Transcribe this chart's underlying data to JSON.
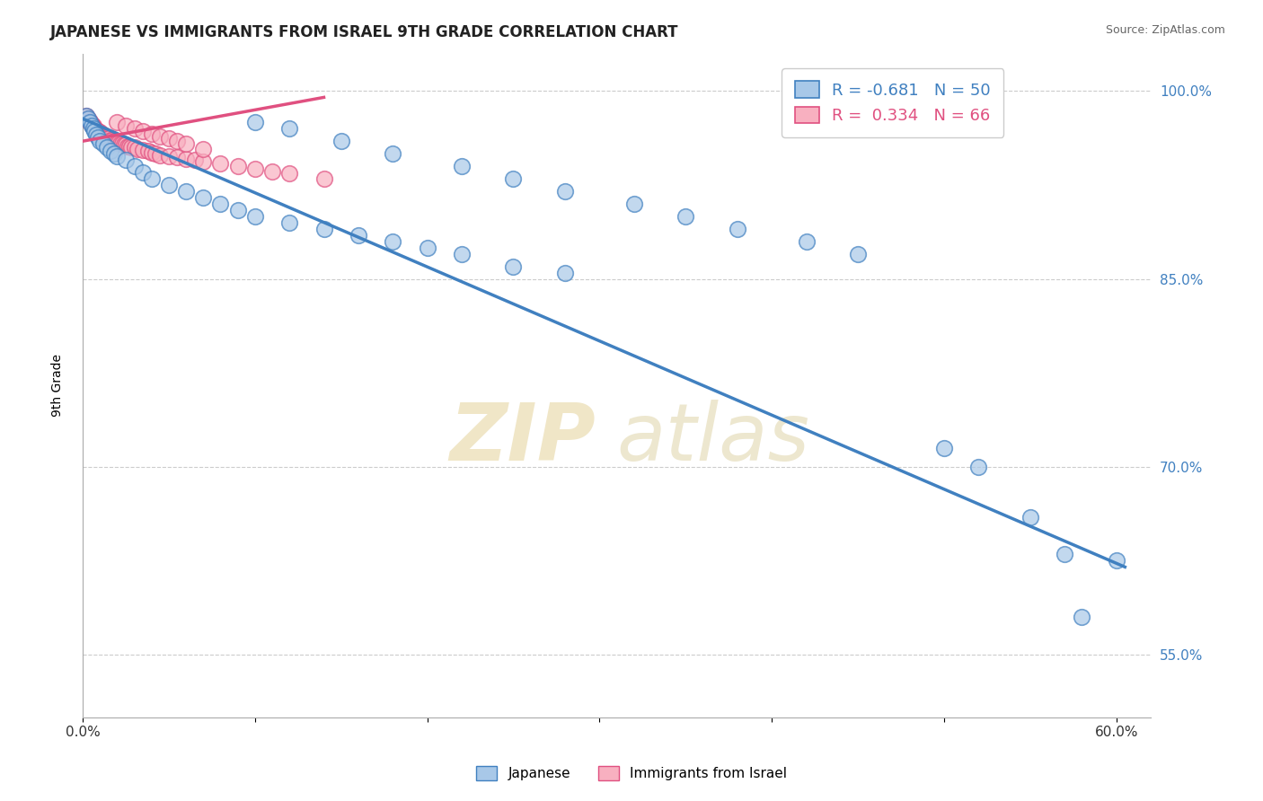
{
  "title": "JAPANESE VS IMMIGRANTS FROM ISRAEL 9TH GRADE CORRELATION CHART",
  "source_text": "Source: ZipAtlas.com",
  "ylabel": "9th Grade",
  "watermark": "ZIPatlas",
  "xlim": [
    0.0,
    0.62
  ],
  "ylim": [
    0.5,
    1.03
  ],
  "grid_color": "#cccccc",
  "background_color": "#ffffff",
  "legend_R_blue": "-0.681",
  "legend_N_blue": "50",
  "legend_R_pink": "0.334",
  "legend_N_pink": "66",
  "blue_color": "#a8c8e8",
  "blue_edge_color": "#4080c0",
  "pink_color": "#f8b0c0",
  "pink_edge_color": "#e05080",
  "blue_scatter_x": [
    0.002,
    0.003,
    0.004,
    0.005,
    0.006,
    0.007,
    0.008,
    0.009,
    0.01,
    0.012,
    0.014,
    0.016,
    0.018,
    0.02,
    0.025,
    0.03,
    0.035,
    0.04,
    0.05,
    0.06,
    0.07,
    0.08,
    0.09,
    0.1,
    0.12,
    0.14,
    0.16,
    0.18,
    0.2,
    0.22,
    0.25,
    0.28,
    0.1,
    0.12,
    0.15,
    0.18,
    0.22,
    0.25,
    0.28,
    0.32,
    0.35,
    0.38,
    0.42,
    0.45,
    0.5,
    0.52,
    0.55,
    0.57,
    0.6,
    0.58
  ],
  "blue_scatter_y": [
    0.98,
    0.978,
    0.975,
    0.972,
    0.97,
    0.968,
    0.965,
    0.963,
    0.96,
    0.958,
    0.955,
    0.952,
    0.95,
    0.948,
    0.945,
    0.94,
    0.935,
    0.93,
    0.925,
    0.92,
    0.915,
    0.91,
    0.905,
    0.9,
    0.895,
    0.89,
    0.885,
    0.88,
    0.875,
    0.87,
    0.86,
    0.855,
    0.975,
    0.97,
    0.96,
    0.95,
    0.94,
    0.93,
    0.92,
    0.91,
    0.9,
    0.89,
    0.88,
    0.87,
    0.715,
    0.7,
    0.66,
    0.63,
    0.625,
    0.58
  ],
  "pink_scatter_x": [
    0.002,
    0.003,
    0.004,
    0.004,
    0.005,
    0.005,
    0.006,
    0.006,
    0.007,
    0.007,
    0.008,
    0.008,
    0.009,
    0.009,
    0.01,
    0.01,
    0.011,
    0.011,
    0.012,
    0.012,
    0.013,
    0.013,
    0.014,
    0.015,
    0.015,
    0.016,
    0.017,
    0.018,
    0.019,
    0.02,
    0.021,
    0.022,
    0.023,
    0.024,
    0.025,
    0.026,
    0.027,
    0.028,
    0.03,
    0.032,
    0.035,
    0.038,
    0.04,
    0.042,
    0.045,
    0.05,
    0.055,
    0.06,
    0.065,
    0.07,
    0.08,
    0.09,
    0.1,
    0.11,
    0.12,
    0.14,
    0.02,
    0.025,
    0.03,
    0.035,
    0.04,
    0.045,
    0.05,
    0.055,
    0.06,
    0.07
  ],
  "pink_scatter_y": [
    0.98,
    0.978,
    0.976,
    0.975,
    0.974,
    0.973,
    0.972,
    0.971,
    0.97,
    0.97,
    0.969,
    0.968,
    0.968,
    0.967,
    0.967,
    0.966,
    0.966,
    0.965,
    0.965,
    0.964,
    0.964,
    0.963,
    0.963,
    0.962,
    0.962,
    0.961,
    0.961,
    0.96,
    0.96,
    0.959,
    0.959,
    0.958,
    0.958,
    0.957,
    0.957,
    0.956,
    0.956,
    0.955,
    0.955,
    0.954,
    0.953,
    0.952,
    0.951,
    0.95,
    0.949,
    0.948,
    0.947,
    0.946,
    0.945,
    0.944,
    0.942,
    0.94,
    0.938,
    0.936,
    0.934,
    0.93,
    0.975,
    0.972,
    0.97,
    0.968,
    0.966,
    0.964,
    0.962,
    0.96,
    0.958,
    0.954
  ],
  "blue_trend_x": [
    0.0,
    0.605
  ],
  "blue_trend_y": [
    0.978,
    0.62
  ],
  "pink_trend_x": [
    0.0,
    0.14
  ],
  "pink_trend_y": [
    0.96,
    0.995
  ],
  "ytick_positions": [
    0.55,
    0.7,
    0.85,
    1.0
  ],
  "ytick_labels": [
    "55.0%",
    "70.0%",
    "85.0%",
    "100.0%"
  ]
}
